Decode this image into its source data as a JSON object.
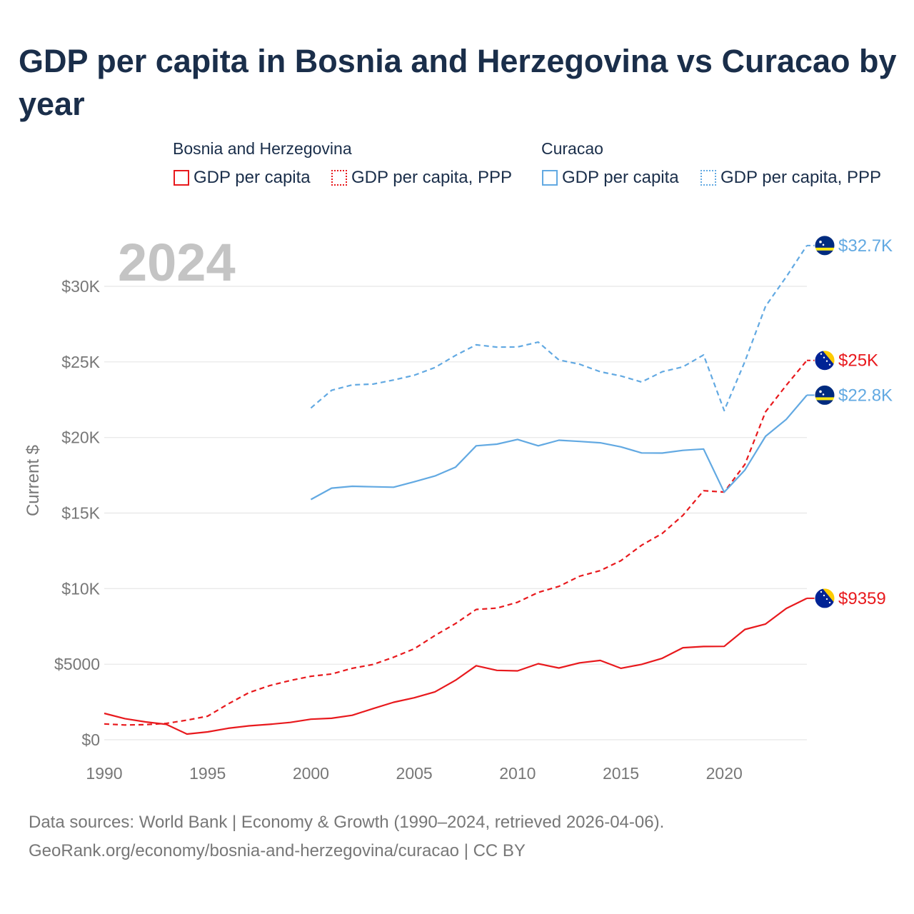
{
  "title": "GDP per capita in Bosnia and Herzegovina vs Curacao by year",
  "legend": {
    "groups": [
      {
        "name": "Bosnia and Herzegovina",
        "items": [
          "GDP per capita",
          "GDP per capita, PPP"
        ]
      },
      {
        "name": "Curacao",
        "items": [
          "GDP per capita",
          "GDP per capita, PPP"
        ]
      }
    ]
  },
  "footer": {
    "line1": "Data sources: World Bank | Economy & Growth (1990–2024, retrieved 2026-04-06).",
    "line2": "GeoRank.org/economy/bosnia-and-herzegovina/curacao | CC BY"
  },
  "colors": {
    "bosnia": "#e8191d",
    "curacao": "#62a9e2",
    "grid": "#e6e6e6",
    "axis_text": "#777777",
    "year_watermark": "#c4c4c4"
  },
  "chart_data": {
    "type": "line",
    "year_label": "2024",
    "ylabel": "Current $",
    "xlim": [
      1990,
      2024
    ],
    "ylim": [
      0,
      30000
    ],
    "x_ticks": [
      1990,
      1995,
      2000,
      2005,
      2010,
      2015,
      2020
    ],
    "y_ticks": [
      {
        "value": 0,
        "label": "$0"
      },
      {
        "value": 5000,
        "label": "$5000"
      },
      {
        "value": 10000,
        "label": "$10K"
      },
      {
        "value": 15000,
        "label": "$15K"
      },
      {
        "value": 20000,
        "label": "$20K"
      },
      {
        "value": 25000,
        "label": "$25K"
      },
      {
        "value": 30000,
        "label": "$30K"
      }
    ],
    "series": [
      {
        "name": "Bosnia and Herzegovina - GDP per capita",
        "country": "bosnia",
        "dashed": false,
        "end_label": "$9359",
        "x": [
          1990,
          1991,
          1992,
          1993,
          1994,
          1995,
          1996,
          1997,
          1998,
          1999,
          2000,
          2001,
          2002,
          2003,
          2004,
          2005,
          2006,
          2007,
          2008,
          2009,
          2010,
          2011,
          2012,
          2013,
          2014,
          2015,
          2016,
          2017,
          2018,
          2019,
          2020,
          2021,
          2022,
          2023,
          2024
        ],
        "values": [
          1750,
          1400,
          1180,
          1020,
          380,
          520,
          760,
          920,
          1020,
          1150,
          1360,
          1420,
          1620,
          2060,
          2480,
          2780,
          3170,
          3940,
          4900,
          4590,
          4560,
          5030,
          4750,
          5090,
          5250,
          4730,
          4990,
          5390,
          6090,
          6170,
          6180,
          7300,
          7660,
          8690,
          9359
        ]
      },
      {
        "name": "Bosnia and Herzegovina - GDP per capita, PPP",
        "country": "bosnia",
        "dashed": true,
        "end_label": "$25K",
        "x": [
          1990,
          1991,
          1992,
          1993,
          1994,
          1995,
          1996,
          1997,
          1998,
          1999,
          2000,
          2001,
          2002,
          2003,
          2004,
          2005,
          2006,
          2007,
          2008,
          2009,
          2010,
          2011,
          2012,
          2013,
          2014,
          2015,
          2016,
          2017,
          2018,
          2019,
          2020,
          2021,
          2022,
          2023,
          2024
        ],
        "values": [
          1050,
          980,
          1000,
          1080,
          1300,
          1560,
          2370,
          3120,
          3580,
          3920,
          4200,
          4350,
          4730,
          4980,
          5460,
          6020,
          6900,
          7690,
          8620,
          8710,
          9100,
          9750,
          10150,
          10820,
          11190,
          11850,
          12870,
          13650,
          14850,
          16480,
          16390,
          18220,
          21700,
          23450,
          25100
        ]
      },
      {
        "name": "Curacao - GDP per capita",
        "country": "curacao",
        "dashed": false,
        "end_label": "$22.8K",
        "x": [
          2000,
          2001,
          2002,
          2003,
          2004,
          2005,
          2006,
          2007,
          2008,
          2009,
          2010,
          2011,
          2012,
          2013,
          2014,
          2015,
          2016,
          2017,
          2018,
          2019,
          2020,
          2021,
          2022,
          2023,
          2024
        ],
        "values": [
          15900,
          16650,
          16770,
          16740,
          16710,
          17070,
          17450,
          18040,
          19450,
          19560,
          19870,
          19450,
          19820,
          19740,
          19650,
          19380,
          18980,
          18970,
          19150,
          19240,
          16380,
          17850,
          20080,
          21200,
          22800
        ]
      },
      {
        "name": "Curacao - GDP per capita, PPP",
        "country": "curacao",
        "dashed": true,
        "end_label": "$32.7K",
        "x": [
          2000,
          2001,
          2002,
          2003,
          2004,
          2005,
          2006,
          2007,
          2008,
          2009,
          2010,
          2011,
          2012,
          2013,
          2014,
          2015,
          2016,
          2017,
          2018,
          2019,
          2020,
          2021,
          2022,
          2023,
          2024
        ],
        "values": [
          21950,
          23120,
          23480,
          23530,
          23800,
          24120,
          24630,
          25430,
          26130,
          25980,
          25990,
          26310,
          25130,
          24850,
          24350,
          24070,
          23670,
          24350,
          24670,
          25460,
          21780,
          25030,
          28680,
          30630,
          32700
        ]
      }
    ]
  }
}
